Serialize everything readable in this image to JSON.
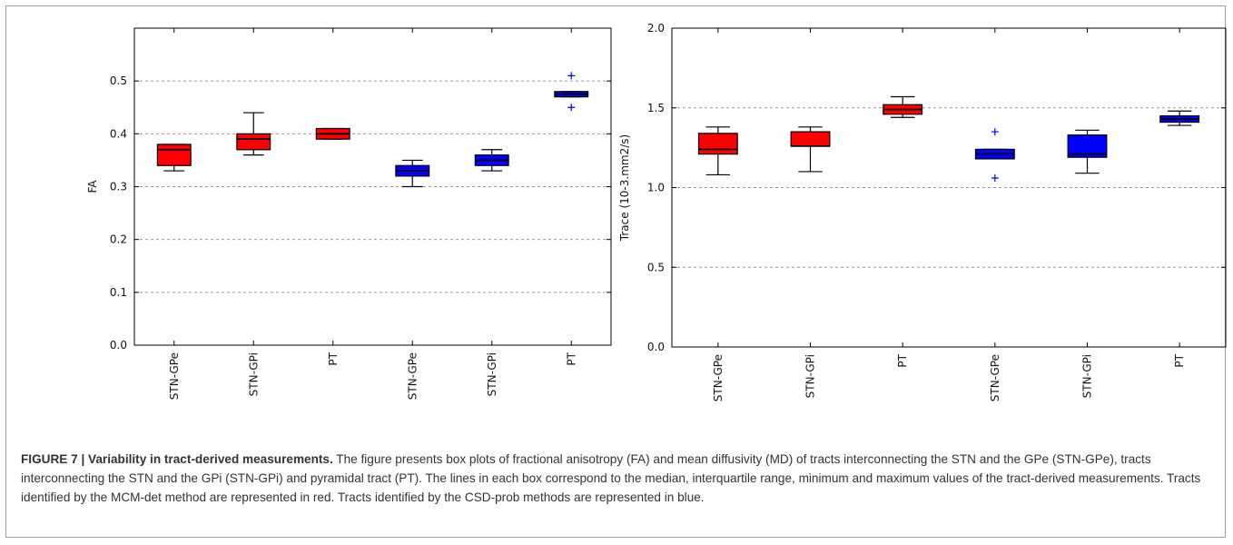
{
  "figure_label": "FIGURE 7 | Variability in tract-derived measurements.",
  "caption_text": " The figure presents box plots of fractional anisotropy (FA) and mean diffusivity (MD) of tracts interconnecting the STN and the GPe (STN-GPe), tracts interconnecting the STN and the GPi (STN-GPi) and pyramidal tract (PT). The lines in each box correspond to the median, interquartile range, minimum and maximum values of the tract-derived measurements. Tracts identified by the MCM-det method are represented in red. Tracts identified by the CSD-prob methods are represented in blue.",
  "colors": {
    "mcm_det": "#ff0000",
    "csd_prob": "#0000ff",
    "outlier": "#0000ff",
    "grid": "#9a9a9a"
  },
  "chart_data": [
    {
      "type": "box",
      "title": "",
      "xlabel": "",
      "ylabel": "FA",
      "ylim": [
        0.0,
        0.6
      ],
      "yticks": [
        0.0,
        0.1,
        0.2,
        0.3,
        0.4,
        0.5
      ],
      "ytick_labels": [
        "0.0",
        "0.1",
        "0.2",
        "0.3",
        "0.4",
        "0.5"
      ],
      "grid": "horizontal dashed",
      "categories": [
        "STN-GPe",
        "STN-GPi",
        "PT",
        "STN-GPe",
        "STN-GPi",
        "PT"
      ],
      "boxes": [
        {
          "category": "STN-GPe",
          "method_color": "red",
          "whisker_low": 0.33,
          "q1": 0.34,
          "median": 0.37,
          "q3": 0.38,
          "whisker_high": 0.38,
          "outliers": []
        },
        {
          "category": "STN-GPi",
          "method_color": "red",
          "whisker_low": 0.36,
          "q1": 0.37,
          "median": 0.39,
          "q3": 0.4,
          "whisker_high": 0.44,
          "outliers": []
        },
        {
          "category": "PT",
          "method_color": "red",
          "whisker_low": 0.39,
          "q1": 0.39,
          "median": 0.4,
          "q3": 0.41,
          "whisker_high": 0.41,
          "outliers": []
        },
        {
          "category": "STN-GPe",
          "method_color": "blue",
          "whisker_low": 0.3,
          "q1": 0.32,
          "median": 0.33,
          "q3": 0.34,
          "whisker_high": 0.35,
          "outliers": []
        },
        {
          "category": "STN-GPi",
          "method_color": "blue",
          "whisker_low": 0.33,
          "q1": 0.34,
          "median": 0.35,
          "q3": 0.36,
          "whisker_high": 0.37,
          "outliers": []
        },
        {
          "category": "PT",
          "method_color": "blue",
          "whisker_low": 0.47,
          "q1": 0.47,
          "median": 0.475,
          "q3": 0.48,
          "whisker_high": 0.48,
          "outliers": [
            0.51,
            0.45
          ]
        }
      ]
    },
    {
      "type": "box",
      "title": "",
      "xlabel": "",
      "ylabel": "Trace (10-3.mm2/s)",
      "ylim": [
        0.0,
        2.0
      ],
      "yticks": [
        0.0,
        0.5,
        1.0,
        1.5,
        2.0
      ],
      "ytick_labels": [
        "0.0",
        "0.5",
        "1.0",
        "1.5",
        "2.0"
      ],
      "grid": "horizontal dashed",
      "categories": [
        "STN-GPe",
        "STN-GPi",
        "PT",
        "STN-GPe",
        "STN-GPi",
        "PT"
      ],
      "boxes": [
        {
          "category": "STN-GPe",
          "method_color": "red",
          "whisker_low": 1.08,
          "q1": 1.21,
          "median": 1.24,
          "q3": 1.34,
          "whisker_high": 1.38,
          "outliers": []
        },
        {
          "category": "STN-GPi",
          "method_color": "red",
          "whisker_low": 1.1,
          "q1": 1.26,
          "median": 1.26,
          "q3": 1.35,
          "whisker_high": 1.38,
          "outliers": []
        },
        {
          "category": "PT",
          "method_color": "red",
          "whisker_low": 1.44,
          "q1": 1.46,
          "median": 1.49,
          "q3": 1.52,
          "whisker_high": 1.57,
          "outliers": []
        },
        {
          "category": "STN-GPe",
          "method_color": "blue",
          "whisker_low": 1.18,
          "q1": 1.18,
          "median": 1.21,
          "q3": 1.24,
          "whisker_high": 1.24,
          "outliers": [
            1.35,
            1.06
          ]
        },
        {
          "category": "STN-GPi",
          "method_color": "blue",
          "whisker_low": 1.09,
          "q1": 1.19,
          "median": 1.21,
          "q3": 1.33,
          "whisker_high": 1.36,
          "outliers": []
        },
        {
          "category": "PT",
          "method_color": "blue",
          "whisker_low": 1.39,
          "q1": 1.41,
          "median": 1.43,
          "q3": 1.45,
          "whisker_high": 1.48,
          "outliers": []
        }
      ]
    }
  ]
}
